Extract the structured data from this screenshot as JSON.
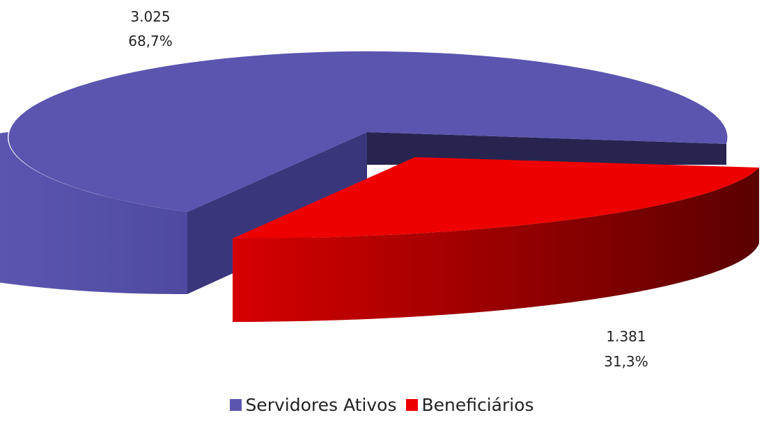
{
  "chart_data": {
    "type": "pie",
    "style": "3d-exploded",
    "slices": [
      {
        "name": "Servidores Ativos",
        "value": 3025,
        "value_label": "3.025",
        "percent_label": "68,7%",
        "color": "#5b55b0",
        "side_color": "#3a367c",
        "dark_color": "#272550"
      },
      {
        "name": "Beneficiários",
        "value": 1381,
        "value_label": "1.381",
        "percent_label": "31,3%",
        "color": "#ee0000",
        "side_color": "#c00000",
        "dark_color": "#6a0000"
      }
    ],
    "legend_position": "bottom"
  }
}
